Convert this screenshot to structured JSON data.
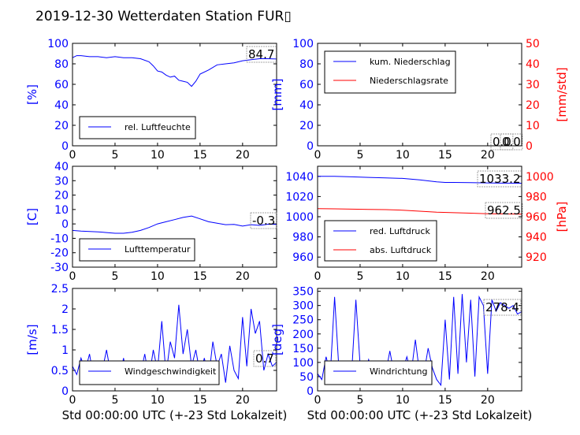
{
  "title": "2019-12-30 Wetterdaten Station FUR▯",
  "colors": {
    "blue": "#0000ff",
    "red": "#ff0000",
    "black": "#000000"
  },
  "chart_data": [
    {
      "id": "humidity",
      "type": "line",
      "ylabel": "[%]",
      "xlabel": "",
      "xlim": [
        0,
        24
      ],
      "ylim": [
        0,
        100
      ],
      "xticks": [
        0,
        5,
        10,
        15,
        20
      ],
      "yticks": [
        0,
        20,
        40,
        60,
        80,
        100
      ],
      "value_label": "84.7",
      "legend": [
        {
          "name": "rel. Luftfeuchte",
          "color": "#0000ff"
        }
      ],
      "series": [
        {
          "name": "rel. Luftfeuchte",
          "color": "#0000ff",
          "x": [
            0,
            0.5,
            1,
            2,
            3,
            4,
            5,
            6,
            7,
            8,
            9,
            9.5,
            10,
            10.5,
            11,
            11.5,
            12,
            12.5,
            13,
            13.5,
            14,
            14.5,
            15,
            16,
            17,
            18,
            19,
            20,
            21,
            22,
            23,
            24
          ],
          "y": [
            86,
            88,
            88,
            87,
            87,
            86,
            87,
            86,
            86,
            85,
            82,
            78,
            73,
            72,
            69,
            67,
            68,
            64,
            63,
            62,
            58,
            63,
            70,
            74,
            79,
            80,
            81,
            83,
            84,
            85,
            85,
            84.7
          ]
        }
      ]
    },
    {
      "id": "precip",
      "type": "line",
      "ylabel": "[mm]",
      "ylabel_right": "[mm/std]",
      "xlabel": "",
      "xlim": [
        0,
        24
      ],
      "ylim": [
        0,
        100
      ],
      "ylim_right": [
        0,
        50
      ],
      "xticks": [
        0,
        5,
        10,
        15,
        20
      ],
      "yticks": [
        0,
        20,
        40,
        60,
        80,
        100
      ],
      "yticks_right": [
        0,
        10,
        20,
        30,
        40,
        50
      ],
      "value_labels": [
        "0.0",
        "0.0"
      ],
      "legend": [
        {
          "name": "kum. Niederschlag",
          "color": "#0000ff"
        },
        {
          "name": "Niederschlagsrate",
          "color": "#ff0000"
        }
      ],
      "series": [
        {
          "name": "kum. Niederschlag",
          "color": "#0000ff",
          "axis": "left",
          "x": [
            0,
            24
          ],
          "y": [
            0,
            0
          ]
        },
        {
          "name": "Niederschlagsrate",
          "color": "#ff0000",
          "axis": "right",
          "x": [
            0,
            24
          ],
          "y": [
            0,
            0
          ]
        }
      ]
    },
    {
      "id": "temperature",
      "type": "line",
      "ylabel": "[C]",
      "xlabel": "",
      "xlim": [
        0,
        24
      ],
      "ylim": [
        -30,
        40
      ],
      "xticks": [
        0,
        5,
        10,
        15,
        20
      ],
      "yticks": [
        -30,
        -20,
        -10,
        0,
        10,
        20,
        30,
        40
      ],
      "value_label": "-0.3",
      "legend": [
        {
          "name": "Lufttemperatur",
          "color": "#0000ff"
        }
      ],
      "series": [
        {
          "name": "Lufttemperatur",
          "color": "#0000ff",
          "x": [
            0,
            1,
            2,
            3,
            4,
            5,
            6,
            7,
            8,
            9,
            10,
            11,
            12,
            13,
            14,
            15,
            16,
            17,
            18,
            19,
            20,
            21,
            22,
            23,
            24
          ],
          "y": [
            -4.5,
            -5,
            -5.2,
            -5.5,
            -6,
            -6.5,
            -6.5,
            -5.8,
            -4.5,
            -2.5,
            0,
            1.5,
            3,
            4.5,
            5.5,
            3.5,
            1.5,
            0.5,
            -0.5,
            -0.3,
            -1.5,
            -0.5,
            -1,
            -0.2,
            -0.3
          ]
        }
      ]
    },
    {
      "id": "pressure",
      "type": "line",
      "ylabel": "",
      "ylabel_right": "[hPa]",
      "xlabel": "",
      "xlim": [
        0,
        24
      ],
      "ylim": [
        950,
        1050
      ],
      "ylim_right": [
        910,
        1010
      ],
      "xticks": [
        0,
        5,
        10,
        15,
        20
      ],
      "yticks": [
        960,
        980,
        1000,
        1020,
        1040
      ],
      "yticks_right": [
        920,
        940,
        960,
        980,
        1000
      ],
      "value_labels": [
        "1033.2",
        "962.5"
      ],
      "legend": [
        {
          "name": "red. Luftdruck",
          "color": "#0000ff"
        },
        {
          "name": "abs. Luftdruck",
          "color": "#ff0000"
        }
      ],
      "series": [
        {
          "name": "red. Luftdruck",
          "color": "#0000ff",
          "axis": "left",
          "x": [
            0,
            2,
            4,
            6,
            8,
            10,
            12,
            14,
            15,
            16,
            18,
            20,
            22,
            24
          ],
          "y": [
            1040,
            1040,
            1039.5,
            1039,
            1038.5,
            1038,
            1036.5,
            1034.5,
            1034,
            1034,
            1033.8,
            1033.5,
            1033.3,
            1033.2
          ]
        },
        {
          "name": "abs. Luftdruck",
          "color": "#ff0000",
          "axis": "right",
          "x": [
            0,
            2,
            4,
            6,
            8,
            10,
            12,
            14,
            16,
            18,
            20,
            22,
            24
          ],
          "y": [
            968,
            967.8,
            967.5,
            967.2,
            967,
            966.5,
            965.5,
            964.5,
            964,
            963.5,
            963,
            962.7,
            962.5
          ]
        }
      ]
    },
    {
      "id": "windspeed",
      "type": "line",
      "ylabel": "[m/s]",
      "xlabel": "Std 00:00:00 UTC (+-23 Std Lokalzeit)",
      "xlim": [
        0,
        24
      ],
      "ylim": [
        0,
        2.5
      ],
      "xticks": [
        0,
        5,
        10,
        15,
        20
      ],
      "yticks": [
        0.0,
        0.5,
        1.0,
        1.5,
        2.0,
        2.5
      ],
      "value_label": "0.7",
      "legend": [
        {
          "name": "Windgeschwindigkeit",
          "color": "#0000ff"
        }
      ],
      "series": [
        {
          "name": "Windgeschwindigkeit",
          "color": "#0000ff",
          "x": [
            0,
            0.5,
            1,
            1.5,
            2,
            2.5,
            3,
            3.5,
            4,
            4.5,
            5,
            5.5,
            6,
            6.5,
            7,
            7.5,
            8,
            8.5,
            9,
            9.5,
            10,
            10.5,
            11,
            11.5,
            12,
            12.5,
            13,
            13.5,
            14,
            14.5,
            15,
            15.5,
            16,
            16.5,
            17,
            17.5,
            18,
            18.5,
            19,
            19.5,
            20,
            20.5,
            21,
            21.5,
            22,
            22.5,
            23,
            23.5,
            24
          ],
          "y": [
            0.6,
            0.4,
            0.8,
            0.5,
            0.9,
            0.3,
            0.7,
            0.5,
            1.0,
            0.4,
            0.6,
            0.3,
            0.8,
            0.2,
            0.5,
            0.7,
            0.4,
            0.9,
            0.3,
            1.0,
            0.5,
            1.7,
            0.4,
            1.2,
            0.8,
            2.1,
            0.9,
            1.5,
            0.6,
            1.0,
            0.4,
            0.8,
            0.3,
            1.2,
            0.6,
            0.9,
            0.2,
            1.1,
            0.5,
            0.3,
            1.8,
            0.6,
            2.0,
            1.4,
            1.7,
            0.5,
            0.9,
            0.6,
            0.7
          ]
        }
      ]
    },
    {
      "id": "winddir",
      "type": "line",
      "ylabel": "[deg]",
      "xlabel": "Std 00:00:00 UTC (+-23 Std Lokalzeit)",
      "xlim": [
        0,
        24
      ],
      "ylim": [
        0,
        360
      ],
      "xticks": [
        0,
        5,
        10,
        15,
        20
      ],
      "yticks": [
        0,
        50,
        100,
        150,
        200,
        250,
        300,
        350
      ],
      "value_label": "278.4",
      "legend": [
        {
          "name": "Windrichtung",
          "color": "#0000ff"
        }
      ],
      "series": [
        {
          "name": "Windrichtung",
          "color": "#0000ff",
          "x": [
            0,
            0.5,
            1,
            1.5,
            2,
            2.5,
            3,
            3.5,
            4,
            4.5,
            5,
            5.5,
            6,
            6.5,
            7,
            7.5,
            8,
            8.5,
            9,
            9.5,
            10,
            10.5,
            11,
            11.5,
            12,
            12.5,
            13,
            13.5,
            14,
            14.5,
            15,
            15.5,
            16,
            16.5,
            17,
            17.5,
            18,
            18.5,
            19,
            19.5,
            20,
            20.5,
            21,
            21.5,
            22,
            22.5,
            23,
            23.5,
            24
          ],
          "y": [
            60,
            40,
            120,
            60,
            330,
            80,
            40,
            100,
            60,
            320,
            90,
            60,
            110,
            50,
            80,
            70,
            60,
            140,
            60,
            100,
            70,
            120,
            60,
            180,
            60,
            60,
            150,
            80,
            40,
            20,
            250,
            40,
            330,
            60,
            340,
            100,
            320,
            50,
            330,
            300,
            60,
            320,
            280,
            310,
            300,
            290,
            300,
            270,
            278
          ]
        }
      ]
    }
  ]
}
